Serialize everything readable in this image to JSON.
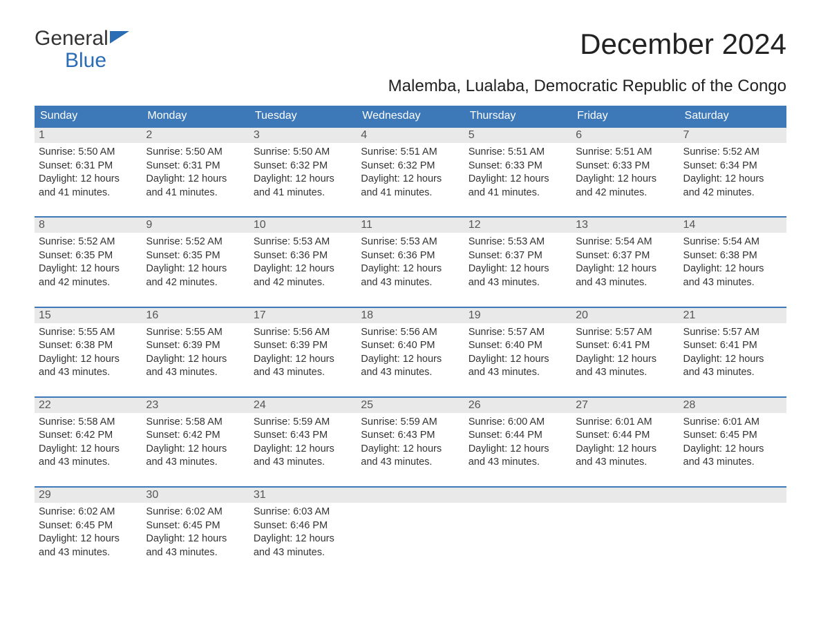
{
  "brand": {
    "general": "General",
    "blue": "Blue"
  },
  "title": "December 2024",
  "subtitle": "Malemba, Lualaba, Democratic Republic of the Congo",
  "colors": {
    "header_bg": "#3d78b8",
    "header_text": "#ffffff",
    "daynum_bg": "#e9e9e9",
    "daynum_text": "#555555",
    "body_text": "#333333",
    "page_bg": "#ffffff",
    "week_border": "#3d78b8",
    "logo_blue": "#2a6db5"
  },
  "typography": {
    "title_fontsize": 42,
    "subtitle_fontsize": 24,
    "dow_fontsize": 16,
    "daynum_fontsize": 16,
    "body_fontsize": 14.5
  },
  "days_of_week": [
    "Sunday",
    "Monday",
    "Tuesday",
    "Wednesday",
    "Thursday",
    "Friday",
    "Saturday"
  ],
  "labels": {
    "sunrise": "Sunrise:",
    "sunset": "Sunset:",
    "daylight": "Daylight:"
  },
  "days": [
    {
      "n": 1,
      "sunrise": "5:50 AM",
      "sunset": "6:31 PM",
      "daylight": "12 hours and 41 minutes."
    },
    {
      "n": 2,
      "sunrise": "5:50 AM",
      "sunset": "6:31 PM",
      "daylight": "12 hours and 41 minutes."
    },
    {
      "n": 3,
      "sunrise": "5:50 AM",
      "sunset": "6:32 PM",
      "daylight": "12 hours and 41 minutes."
    },
    {
      "n": 4,
      "sunrise": "5:51 AM",
      "sunset": "6:32 PM",
      "daylight": "12 hours and 41 minutes."
    },
    {
      "n": 5,
      "sunrise": "5:51 AM",
      "sunset": "6:33 PM",
      "daylight": "12 hours and 41 minutes."
    },
    {
      "n": 6,
      "sunrise": "5:51 AM",
      "sunset": "6:33 PM",
      "daylight": "12 hours and 42 minutes."
    },
    {
      "n": 7,
      "sunrise": "5:52 AM",
      "sunset": "6:34 PM",
      "daylight": "12 hours and 42 minutes."
    },
    {
      "n": 8,
      "sunrise": "5:52 AM",
      "sunset": "6:35 PM",
      "daylight": "12 hours and 42 minutes."
    },
    {
      "n": 9,
      "sunrise": "5:52 AM",
      "sunset": "6:35 PM",
      "daylight": "12 hours and 42 minutes."
    },
    {
      "n": 10,
      "sunrise": "5:53 AM",
      "sunset": "6:36 PM",
      "daylight": "12 hours and 42 minutes."
    },
    {
      "n": 11,
      "sunrise": "5:53 AM",
      "sunset": "6:36 PM",
      "daylight": "12 hours and 43 minutes."
    },
    {
      "n": 12,
      "sunrise": "5:53 AM",
      "sunset": "6:37 PM",
      "daylight": "12 hours and 43 minutes."
    },
    {
      "n": 13,
      "sunrise": "5:54 AM",
      "sunset": "6:37 PM",
      "daylight": "12 hours and 43 minutes."
    },
    {
      "n": 14,
      "sunrise": "5:54 AM",
      "sunset": "6:38 PM",
      "daylight": "12 hours and 43 minutes."
    },
    {
      "n": 15,
      "sunrise": "5:55 AM",
      "sunset": "6:38 PM",
      "daylight": "12 hours and 43 minutes."
    },
    {
      "n": 16,
      "sunrise": "5:55 AM",
      "sunset": "6:39 PM",
      "daylight": "12 hours and 43 minutes."
    },
    {
      "n": 17,
      "sunrise": "5:56 AM",
      "sunset": "6:39 PM",
      "daylight": "12 hours and 43 minutes."
    },
    {
      "n": 18,
      "sunrise": "5:56 AM",
      "sunset": "6:40 PM",
      "daylight": "12 hours and 43 minutes."
    },
    {
      "n": 19,
      "sunrise": "5:57 AM",
      "sunset": "6:40 PM",
      "daylight": "12 hours and 43 minutes."
    },
    {
      "n": 20,
      "sunrise": "5:57 AM",
      "sunset": "6:41 PM",
      "daylight": "12 hours and 43 minutes."
    },
    {
      "n": 21,
      "sunrise": "5:57 AM",
      "sunset": "6:41 PM",
      "daylight": "12 hours and 43 minutes."
    },
    {
      "n": 22,
      "sunrise": "5:58 AM",
      "sunset": "6:42 PM",
      "daylight": "12 hours and 43 minutes."
    },
    {
      "n": 23,
      "sunrise": "5:58 AM",
      "sunset": "6:42 PM",
      "daylight": "12 hours and 43 minutes."
    },
    {
      "n": 24,
      "sunrise": "5:59 AM",
      "sunset": "6:43 PM",
      "daylight": "12 hours and 43 minutes."
    },
    {
      "n": 25,
      "sunrise": "5:59 AM",
      "sunset": "6:43 PM",
      "daylight": "12 hours and 43 minutes."
    },
    {
      "n": 26,
      "sunrise": "6:00 AM",
      "sunset": "6:44 PM",
      "daylight": "12 hours and 43 minutes."
    },
    {
      "n": 27,
      "sunrise": "6:01 AM",
      "sunset": "6:44 PM",
      "daylight": "12 hours and 43 minutes."
    },
    {
      "n": 28,
      "sunrise": "6:01 AM",
      "sunset": "6:45 PM",
      "daylight": "12 hours and 43 minutes."
    },
    {
      "n": 29,
      "sunrise": "6:02 AM",
      "sunset": "6:45 PM",
      "daylight": "12 hours and 43 minutes."
    },
    {
      "n": 30,
      "sunrise": "6:02 AM",
      "sunset": "6:45 PM",
      "daylight": "12 hours and 43 minutes."
    },
    {
      "n": 31,
      "sunrise": "6:03 AM",
      "sunset": "6:46 PM",
      "daylight": "12 hours and 43 minutes."
    }
  ],
  "calendar_layout": {
    "weeks": 5,
    "start_day_index": 0,
    "trailing_empty_last_week": 4
  }
}
